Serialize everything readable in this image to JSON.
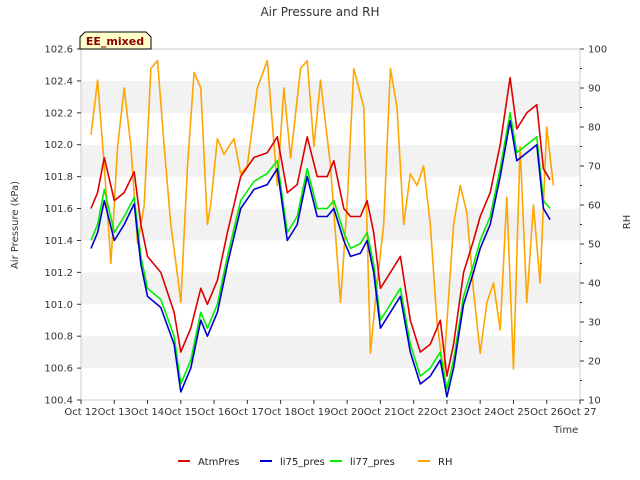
{
  "chart_data": {
    "type": "line",
    "title": "Air Pressure and RH",
    "badge": "EE_mixed",
    "xlabel": "Time",
    "ylabel_left": "Air Pressure (kPa)",
    "ylabel_right": "RH",
    "x_ticks": [
      "Oct 12",
      "Oct 13",
      "Oct 14",
      "Oct 15",
      "Oct 16",
      "Oct 17",
      "Oct 18",
      "Oct 19",
      "Oct 20",
      "Oct 21",
      "Oct 22",
      "Oct 23",
      "Oct 24",
      "Oct 25",
      "Oct 26",
      "Oct 27"
    ],
    "xlim": [
      12,
      27
    ],
    "ylim_left": [
      100.4,
      102.6
    ],
    "ylim_right": [
      10,
      100
    ],
    "yticks_left": [
      "100.4",
      "100.6",
      "100.8",
      "101.0",
      "101.2",
      "101.4",
      "101.6",
      "101.8",
      "102.0",
      "102.2",
      "102.4",
      "102.6"
    ],
    "yticks_right": [
      "10",
      "20",
      "30",
      "40",
      "50",
      "60",
      "70",
      "80",
      "90",
      "100"
    ],
    "grid": "horizontal bands",
    "legend_position": "bottom",
    "colors": {
      "AtmPres": "#dd0000",
      "li75_pres": "#0000cc",
      "li77_pres": "#00ee00",
      "RH": "#ffa500",
      "band": "#f2f2f2",
      "badge_bg": "#ffffcc"
    },
    "series": [
      {
        "name": "AtmPres",
        "axis": "left",
        "x": [
          12.3,
          12.5,
          12.7,
          13.0,
          13.3,
          13.6,
          13.8,
          14.0,
          14.4,
          14.8,
          15.0,
          15.3,
          15.6,
          15.8,
          16.1,
          16.4,
          16.8,
          17.2,
          17.6,
          17.9,
          18.2,
          18.5,
          18.8,
          19.1,
          19.4,
          19.6,
          19.9,
          20.1,
          20.4,
          20.6,
          20.8,
          21.0,
          21.3,
          21.6,
          21.9,
          22.2,
          22.5,
          22.8,
          23.0,
          23.2,
          23.5,
          23.8,
          24.0,
          24.3,
          24.6,
          24.9,
          25.1,
          25.4,
          25.7,
          25.9,
          26.1
        ],
        "y": [
          101.6,
          101.7,
          101.92,
          101.65,
          101.7,
          101.83,
          101.5,
          101.3,
          101.2,
          100.95,
          100.7,
          100.85,
          101.1,
          101.0,
          101.15,
          101.45,
          101.8,
          101.92,
          101.95,
          102.05,
          101.7,
          101.75,
          102.05,
          101.8,
          101.8,
          101.9,
          101.6,
          101.55,
          101.55,
          101.65,
          101.45,
          101.1,
          101.2,
          101.3,
          100.9,
          100.7,
          100.75,
          100.9,
          100.55,
          100.75,
          101.2,
          101.4,
          101.55,
          101.7,
          102.0,
          102.42,
          102.1,
          102.2,
          102.25,
          101.85,
          101.78
        ]
      },
      {
        "name": "li75_pres",
        "axis": "left",
        "x": [
          12.3,
          12.5,
          12.7,
          13.0,
          13.3,
          13.6,
          13.8,
          14.0,
          14.4,
          14.8,
          15.0,
          15.3,
          15.6,
          15.8,
          16.1,
          16.4,
          16.8,
          17.2,
          17.6,
          17.9,
          18.2,
          18.5,
          18.8,
          19.1,
          19.4,
          19.6,
          19.9,
          20.1,
          20.4,
          20.6,
          20.8,
          21.0,
          21.3,
          21.6,
          21.9,
          22.2,
          22.5,
          22.8,
          23.0,
          23.2,
          23.5,
          23.8,
          24.0,
          24.3,
          24.6,
          24.9,
          25.1,
          25.4,
          25.7,
          25.9,
          26.1
        ],
        "y": [
          101.35,
          101.45,
          101.65,
          101.4,
          101.5,
          101.63,
          101.25,
          101.05,
          100.98,
          100.75,
          100.45,
          100.6,
          100.9,
          100.8,
          100.95,
          101.25,
          101.6,
          101.72,
          101.75,
          101.85,
          101.4,
          101.5,
          101.8,
          101.55,
          101.55,
          101.6,
          101.4,
          101.3,
          101.32,
          101.4,
          101.2,
          100.85,
          100.95,
          101.05,
          100.7,
          100.5,
          100.55,
          100.65,
          100.42,
          100.6,
          101.0,
          101.2,
          101.35,
          101.5,
          101.8,
          102.15,
          101.9,
          101.95,
          102.0,
          101.6,
          101.53
        ]
      },
      {
        "name": "li77_pres",
        "axis": "left",
        "x": [
          12.3,
          12.5,
          12.7,
          13.0,
          13.3,
          13.6,
          13.8,
          14.0,
          14.4,
          14.8,
          15.0,
          15.3,
          15.6,
          15.8,
          16.1,
          16.4,
          16.8,
          17.2,
          17.6,
          17.9,
          18.2,
          18.5,
          18.8,
          19.1,
          19.4,
          19.6,
          19.9,
          20.1,
          20.4,
          20.6,
          20.8,
          21.0,
          21.3,
          21.6,
          21.9,
          22.2,
          22.5,
          22.8,
          23.0,
          23.2,
          23.5,
          23.8,
          24.0,
          24.3,
          24.6,
          24.9,
          25.1,
          25.4,
          25.7,
          25.9,
          26.1
        ],
        "y": [
          101.4,
          101.5,
          101.72,
          101.45,
          101.55,
          101.67,
          101.3,
          101.1,
          101.03,
          100.8,
          100.5,
          100.65,
          100.95,
          100.85,
          101.0,
          101.3,
          101.65,
          101.77,
          101.82,
          101.9,
          101.45,
          101.55,
          101.85,
          101.6,
          101.6,
          101.65,
          101.45,
          101.35,
          101.38,
          101.45,
          101.25,
          100.9,
          101.0,
          101.1,
          100.75,
          100.55,
          100.6,
          100.7,
          100.47,
          100.65,
          101.05,
          101.25,
          101.4,
          101.55,
          101.85,
          102.2,
          101.95,
          102.0,
          102.05,
          101.65,
          101.6
        ]
      },
      {
        "name": "RH",
        "axis": "right",
        "x": [
          12.3,
          12.5,
          12.7,
          12.9,
          13.1,
          13.3,
          13.5,
          13.7,
          13.9,
          14.1,
          14.3,
          14.5,
          14.7,
          14.9,
          15.0,
          15.2,
          15.4,
          15.6,
          15.8,
          15.9,
          16.1,
          16.3,
          16.6,
          16.8,
          17.0,
          17.3,
          17.6,
          17.9,
          18.1,
          18.3,
          18.6,
          18.8,
          19.0,
          19.2,
          19.5,
          19.8,
          20.0,
          20.2,
          20.5,
          20.7,
          20.9,
          21.1,
          21.3,
          21.5,
          21.7,
          21.9,
          22.1,
          22.3,
          22.5,
          22.7,
          22.9,
          23.0,
          23.2,
          23.4,
          23.6,
          23.8,
          24.0,
          24.2,
          24.4,
          24.6,
          24.8,
          25.0,
          25.2,
          25.4,
          25.6,
          25.8,
          26.0,
          26.2
        ],
        "y": [
          78,
          92,
          70,
          45,
          75,
          90,
          75,
          50,
          60,
          95,
          97,
          75,
          55,
          42,
          35,
          70,
          94,
          90,
          55,
          60,
          77,
          73,
          77,
          68,
          70,
          90,
          97,
          65,
          90,
          72,
          95,
          97,
          75,
          92,
          70,
          35,
          60,
          95,
          85,
          22,
          40,
          55,
          95,
          85,
          55,
          68,
          65,
          70,
          55,
          30,
          17,
          30,
          55,
          65,
          58,
          38,
          22,
          35,
          40,
          28,
          62,
          18,
          75,
          35,
          60,
          40,
          80,
          65
        ]
      }
    ]
  }
}
